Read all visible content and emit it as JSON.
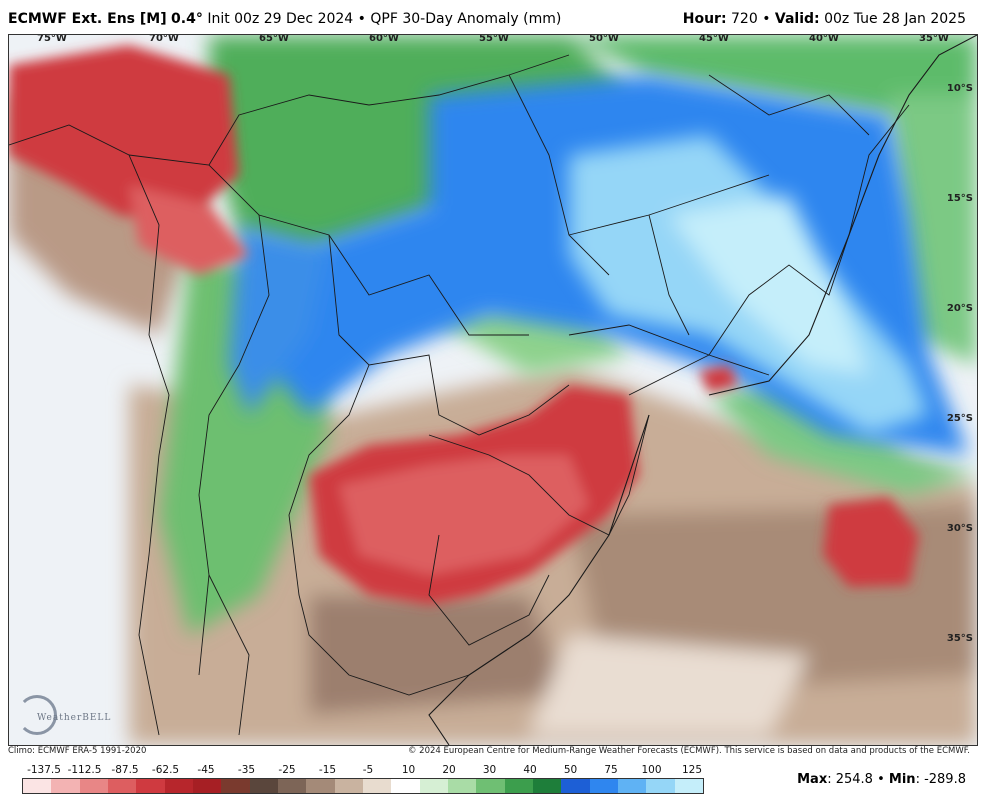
{
  "header": {
    "model": "ECMWF Ext. Ens [M]",
    "resolution": "0.4°",
    "init": "Init 00z 29 Dec 2024",
    "bullet": "•",
    "product": "QPF 30-Day Anomaly (mm)",
    "hour_label": "Hour:",
    "hour_value": "720",
    "valid_label": "Valid:",
    "valid_value": "00z Tue 28 Jan 2025"
  },
  "map": {
    "longitude_labels": [
      "75°W",
      "70°W",
      "65°W",
      "60°W",
      "55°W",
      "50°W",
      "45°W",
      "40°W",
      "35°W"
    ],
    "latitude_labels": [
      "10°S",
      "15°S",
      "20°S",
      "25°S",
      "30°S",
      "35°S"
    ],
    "logo_text": "WeatherBELL"
  },
  "footer": {
    "climo": "Climo: ECMWF ERA-5 1991-2020",
    "copyright": "© 2024 European Centre for Medium-Range Weather Forecasts (ECMWF). This service is based on data and products of the ECMWF."
  },
  "colorbar": {
    "labels": [
      "-137.5",
      "-112.5",
      "-87.5",
      "-62.5",
      "-45",
      "-35",
      "-25",
      "-15",
      "-5",
      "10",
      "20",
      "30",
      "40",
      "50",
      "75",
      "100",
      "125"
    ],
    "colors": [
      "#fbe4e4",
      "#f3b3b3",
      "#e88686",
      "#dd5e60",
      "#cf3a40",
      "#b7262c",
      "#a61f24",
      "#7a3a2e",
      "#5a463c",
      "#7d6557",
      "#a48a78",
      "#c9b3a0",
      "#e8dccf",
      "#ffffff",
      "#d6efd4",
      "#a9dca6",
      "#6fbf73",
      "#3c9e4d",
      "#1e7e3a",
      "#1d5fd6",
      "#2f86ef",
      "#5fb2f4",
      "#95d6f7",
      "#c5eefa"
    ]
  },
  "stats": {
    "max_label": "Max",
    "max_value": "254.8",
    "min_label": "Min",
    "min_value": "-289.8"
  }
}
